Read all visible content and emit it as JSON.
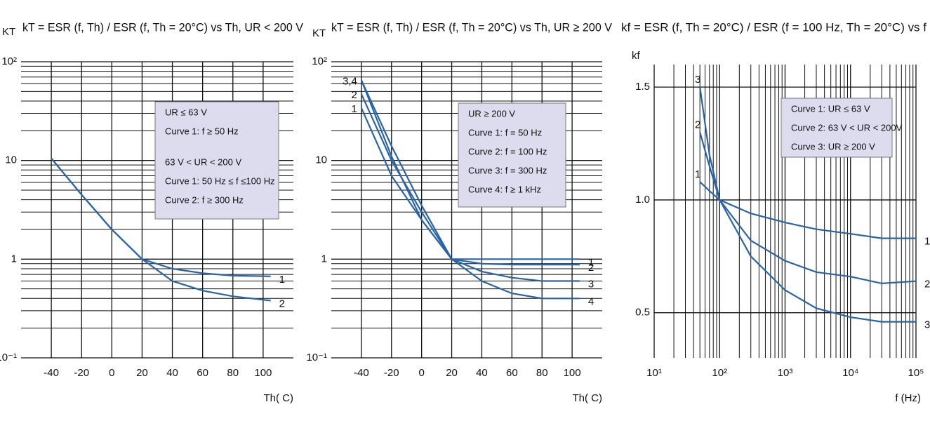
{
  "chart_data": [
    {
      "type": "line",
      "title": "kT = ESR (f, Th) / ESR (f, Th = 20°C) vs Th, UR < 200 V",
      "ylabel": "KT",
      "xlabel": "Th( C)",
      "x": [
        -40,
        -20,
        0,
        20,
        40,
        60,
        80,
        105
      ],
      "series": [
        {
          "name": "1",
          "color": "#2a64a8",
          "values": [
            10.5,
            4.5,
            2,
            1.0,
            0.8,
            0.72,
            0.68,
            0.67
          ]
        },
        {
          "name": "2",
          "color": "#2a64a8",
          "values": [
            10.5,
            4.5,
            2,
            1.0,
            0.6,
            0.48,
            0.42,
            0.38
          ]
        }
      ],
      "xlim": [
        -60,
        120
      ],
      "xticks": [
        -40,
        -20,
        0,
        20,
        40,
        60,
        80,
        100
      ],
      "ylim": [
        0.1,
        100
      ],
      "ylog": true,
      "yticks": [
        {
          "value": 0.1,
          "label": "10⁻¹"
        },
        1,
        10,
        {
          "value": 100,
          "label": "10²"
        }
      ],
      "grid": true,
      "box": [
        [
          "UR ≤ 63 V",
          "Curve 1: f ≥ 50 Hz"
        ],
        [
          "63 V < UR < 200 V",
          "Curve 1: 50 Hz ≤ f ≤100 Hz",
          "Curve 2: f ≥ 300 Hz"
        ]
      ]
    },
    {
      "type": "line",
      "title": "kT = ESR (f, Th) / ESR (f, Th = 20°C) vs Th, UR ≥ 200 V",
      "ylabel": "KT",
      "xlabel": "Th( C)",
      "x": [
        -40,
        -20,
        0,
        20,
        40,
        60,
        80,
        105
      ],
      "series": [
        {
          "name": "1",
          "color": "#2a64a8",
          "values": [
            34,
            7,
            2.5,
            1.0,
            1.0,
            1.0,
            1.0,
            1.0
          ]
        },
        {
          "name": "2",
          "color": "#2a64a8",
          "values": [
            47,
            10,
            3,
            1.0,
            0.9,
            0.88,
            0.88,
            0.88
          ]
        },
        {
          "name": "3",
          "color": "#2a64a8",
          "values": [
            65,
            14,
            3.5,
            1.0,
            0.75,
            0.65,
            0.6,
            0.6
          ]
        },
        {
          "name": "4",
          "color": "#2a64a8",
          "values": [
            65,
            11,
            2.5,
            1.0,
            0.6,
            0.45,
            0.4,
            0.4
          ]
        }
      ],
      "start_labels": [
        "1",
        "2",
        "3,4"
      ],
      "xlim": [
        -60,
        120
      ],
      "xticks": [
        -40,
        -20,
        0,
        20,
        40,
        60,
        80,
        100
      ],
      "ylim": [
        0.1,
        100
      ],
      "ylog": true,
      "yticks": [
        {
          "value": 0.1,
          "label": "10⁻¹"
        },
        1,
        10,
        {
          "value": 100,
          "label": "10²"
        }
      ],
      "grid": true,
      "box": [
        [
          "UR ≥ 200 V",
          "Curve 1: f = 50 Hz",
          "Curve 2: f = 100 Hz",
          "Curve 3: f = 300 Hz",
          "Curve 4: f ≥ 1 kHz"
        ]
      ]
    },
    {
      "type": "line",
      "title": "kf = ESR (f, Th = 20°C) / ESR (f = 100 Hz, Th = 20°C) vs f",
      "ylabel": "kf",
      "xlabel": "f (Hz)",
      "x": [
        50,
        70,
        100,
        300,
        1000,
        3000,
        10000,
        30000,
        100000
      ],
      "series": [
        {
          "name": "1",
          "color": "#2a64a8",
          "values": [
            1.08,
            1.04,
            1.0,
            0.94,
            0.9,
            0.87,
            0.85,
            0.83,
            0.83
          ]
        },
        {
          "name": "2",
          "color": "#2a64a8",
          "values": [
            1.3,
            1.15,
            1.0,
            0.82,
            0.73,
            0.68,
            0.66,
            0.63,
            0.64
          ]
        },
        {
          "name": "3",
          "color": "#2a64a8",
          "values": [
            1.5,
            1.2,
            1.0,
            0.75,
            0.6,
            0.52,
            0.48,
            0.46,
            0.46
          ]
        }
      ],
      "label_start": true,
      "xlim": [
        10,
        100000
      ],
      "xlog": true,
      "xticks": [
        {
          "value": 10,
          "label": "10¹"
        },
        {
          "value": 100,
          "label": "10²"
        },
        {
          "value": 1000,
          "label": "10³"
        },
        {
          "value": 10000,
          "label": "10⁴"
        },
        {
          "value": 100000,
          "label": "10⁵"
        }
      ],
      "ylim": [
        0.3,
        1.6
      ],
      "yticks": [
        0.5,
        {
          "value": 1.0,
          "label": "1.0"
        },
        1.5
      ],
      "grid": true,
      "box": [
        [
          "Curve 1: UR ≤ 63 V",
          "Curve 2: 63 V < UR < 200V",
          "Curve 3: UR ≥ 200 V"
        ]
      ]
    }
  ]
}
